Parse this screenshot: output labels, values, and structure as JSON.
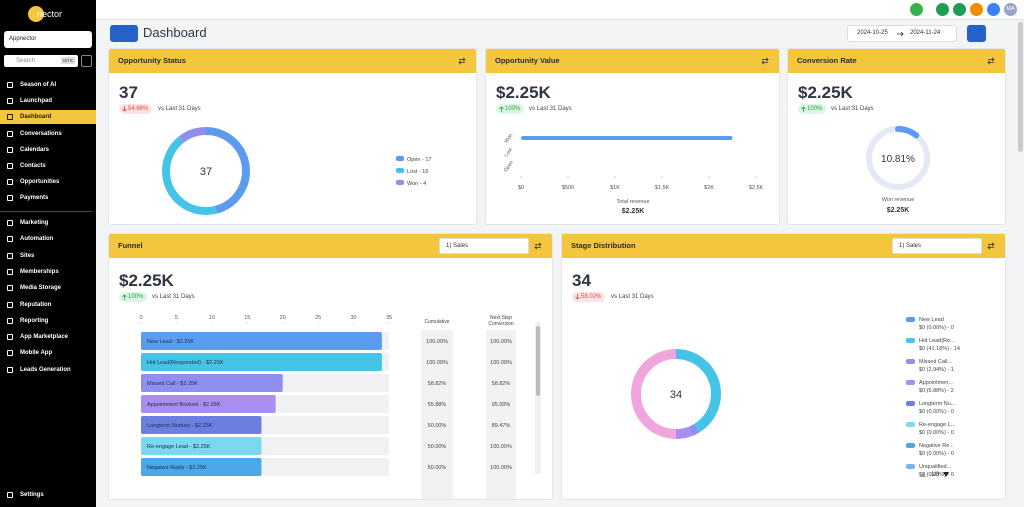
{
  "sidebar": {
    "logo": "nector",
    "account": "Appnector",
    "search": "Search",
    "shortcut": "ctrl K",
    "nav": [
      "Season of AI",
      "Launchpad",
      "Dashboard",
      "Conversations",
      "Calendars",
      "Contacts",
      "Opportunities",
      "Payments"
    ],
    "nav2": [
      "Marketing",
      "Automation",
      "Sites",
      "Memberships",
      "Media Storage",
      "Reputation",
      "Reporting",
      "App Marketplace",
      "Mobile App",
      "Leads Generation"
    ],
    "settings": "Settings"
  },
  "topbar": {
    "avatar": "MA"
  },
  "header": {
    "title": "Dashboard",
    "date_from": "2024-10-25",
    "date_to": "2024-11-24"
  },
  "opportunity_status": {
    "title": "Opportunity Status",
    "value": "37",
    "change": "54.88%",
    "compare": "vs Last 31 Days",
    "chart_data": {
      "type": "donut",
      "center": "37",
      "categories": [
        "Open - 17",
        "Lost - 16",
        "Won - 4"
      ],
      "values": [
        17,
        16,
        4
      ],
      "colors": [
        "#5b9cf0",
        "#45c4e8",
        "#8f8ff0"
      ]
    }
  },
  "opportunity_value": {
    "title": "Opportunity Value",
    "value": "$2.25K",
    "change": "100%",
    "compare": "vs Last 31 Days",
    "chart_data": {
      "type": "hbar",
      "categories": [
        "Won",
        "Lost",
        "Open"
      ],
      "values": [
        2250,
        0,
        0
      ],
      "color": "#5b9cf0",
      "xlim": [
        0,
        2500
      ],
      "xticks": [
        {
          "value": 0,
          "label": "$0"
        },
        {
          "value": 500,
          "label": "$500"
        },
        {
          "value": 1000,
          "label": "$1K"
        },
        {
          "value": 1500,
          "label": "$1.5K"
        },
        {
          "value": 2000,
          "label": "$2K"
        },
        {
          "value": 2500,
          "label": "$2.5K"
        }
      ],
      "xlabel": "Total revenue",
      "total": "$2.25K"
    }
  },
  "conversion_rate": {
    "title": "Conversion Rate",
    "value": "$2.25K",
    "change": "100%",
    "compare": "vs Last 31 Days",
    "chart_data": {
      "type": "gauge",
      "values": [
        10.81
      ],
      "value_labels": [
        "10.81%"
      ],
      "range": [
        0,
        100
      ],
      "color": "#5b9cf0",
      "caption": "Won revenue",
      "total": "$2.25K"
    }
  },
  "funnel": {
    "title": "Funnel",
    "pipeline": "1) Sales",
    "value": "$2.25K",
    "change": "100%",
    "compare": "vs Last 31 Days",
    "chart_data": {
      "type": "hbar",
      "categories": [
        "New Lead - $2.25K",
        "Hot Lead(Responded) - $2.25K",
        "Missed Call - $2.25K",
        "Appointment Booked - $2.25K",
        "Longterm Nurture - $2.25K",
        "Re-engage Lead - $2.25K",
        "Negative Reply - $2.25K"
      ],
      "values": [
        34,
        34,
        20,
        19,
        17,
        17,
        17
      ],
      "colors": [
        "#5b9cf0",
        "#45c4e8",
        "#8f8ff0",
        "#a98ef0",
        "#6b7fe0",
        "#7ad8ef",
        "#4ba7e8"
      ],
      "xlim": [
        0,
        35
      ],
      "xticks": [
        0,
        5,
        10,
        15,
        20,
        25,
        30,
        35
      ],
      "cumulative_header": "Cumulative",
      "next_header": "Next Step Conversion",
      "cumulative": [
        "100.00%",
        "100.00%",
        "58.82%",
        "55.88%",
        "50.00%",
        "50.00%",
        "50.00%"
      ],
      "next": [
        "100.00%",
        "100.00%",
        "58.82%",
        "95.00%",
        "89.47%",
        "100.00%",
        "100.00%"
      ]
    }
  },
  "stage_distribution": {
    "title": "Stage Distribution",
    "pipeline": "1) Sales",
    "value": "34",
    "change": "58.02%",
    "compare": "vs Last 31 Days",
    "chart_data": {
      "type": "donut",
      "center": "34",
      "categories": [
        "New Lead",
        "Hot Lead(Re...",
        "Missed Call...",
        "Appointmen...",
        "Longterm Nu...",
        "Re-engage L...",
        "Negative Re...",
        "Unqualified...",
        null
      ],
      "values": [
        0,
        14,
        1,
        2,
        0,
        0,
        0,
        0,
        17
      ],
      "value_labels": [
        "$0 (0.00%) - 0",
        "$0 (41.18%) - 14",
        "$0 (2.94%) - 1",
        "$0 (5.88%) - 2",
        "$0 (0.00%) - 0",
        "$0 (0.00%) - 0",
        "$0 (0.00%) - 0",
        "$0 (0.00%) - 0",
        null
      ],
      "colors": [
        "#5b9cf0",
        "#45c4e8",
        "#8f8ff0",
        "#a98ef0",
        "#6b7fe0",
        "#7ad8ef",
        "#4ba7e8",
        "#7fb2f0",
        "#f0a6dc"
      ],
      "page": "1/3"
    }
  }
}
